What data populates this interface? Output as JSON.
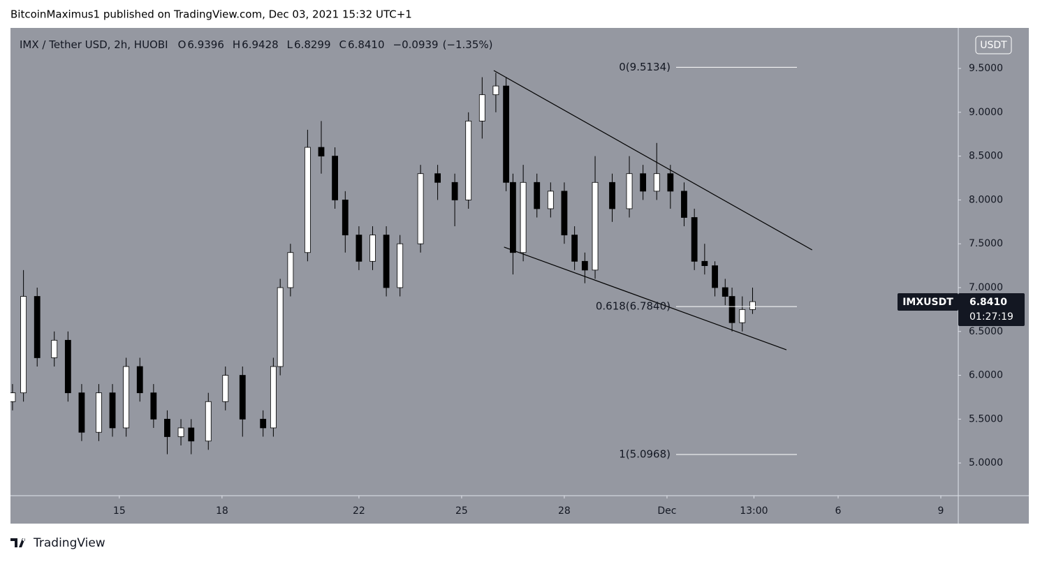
{
  "header": {
    "text": "BitcoinMaximus1 published on TradingView.com, Dec 03, 2021 15:32 UTC+1"
  },
  "footer": {
    "brand": "TradingView"
  },
  "chart_data": {
    "type": "candlestick",
    "title": "IMX / Tether USD, 2h, HUOBI",
    "legend": {
      "o_label": "O",
      "open": 6.9396,
      "h_label": "H",
      "high": 6.9428,
      "l_label": "L",
      "low": 6.8299,
      "c_label": "C",
      "close": 6.841,
      "close_label": "6.8410",
      "change": "−0.0939",
      "change_pct": "(−1.35%)"
    },
    "currency": "USDT",
    "symbol": "IMXUSDT",
    "last_price": {
      "value": 6.841,
      "label": "6.8410"
    },
    "countdown": "01:27:19",
    "up_color": "#ffffff",
    "down_color": "#000000",
    "wick_color": "#000000",
    "xlim": [
      11.82,
      39.51
    ],
    "ylim": [
      4.627,
      9.962
    ],
    "xticks": [
      15,
      18,
      22,
      25,
      28,
      {
        "value": 31,
        "label": "Dec"
      },
      {
        "value": 33.54,
        "label": "13:00"
      },
      {
        "value": 36,
        "label": "6"
      },
      {
        "value": 39,
        "label": "9"
      }
    ],
    "yticks": [
      {
        "value": 5,
        "label": "5.0000"
      },
      {
        "value": 5.5,
        "label": "5.5000"
      },
      {
        "value": 6,
        "label": "6.0000"
      },
      {
        "value": 6.5,
        "label": "6.5000"
      },
      {
        "value": 7,
        "label": "7.0000"
      },
      {
        "value": 7.5,
        "label": "7.5000"
      },
      {
        "value": 8,
        "label": "8.0000"
      },
      {
        "value": 8.5,
        "label": "8.5000"
      },
      {
        "value": 9,
        "label": "9.0000"
      },
      {
        "value": 9.5,
        "label": "9.5000"
      }
    ],
    "x": [
      11.88,
      12.2,
      12.6,
      13.1,
      13.5,
      13.9,
      14.4,
      14.8,
      15.2,
      15.6,
      16.0,
      16.4,
      16.8,
      17.1,
      17.6,
      18.1,
      18.6,
      19.2,
      19.5,
      19.7,
      20.0,
      20.5,
      20.9,
      21.3,
      21.6,
      22.0,
      22.4,
      22.8,
      23.2,
      23.8,
      24.3,
      24.8,
      25.2,
      25.6,
      26.0,
      26.3,
      26.5,
      26.8,
      27.2,
      27.6,
      28.0,
      28.3,
      28.6,
      28.9,
      29.4,
      29.9,
      30.3,
      30.7,
      31.1,
      31.5,
      31.8,
      32.1,
      32.4,
      32.7,
      32.9,
      33.2,
      33.5
    ],
    "open": [
      5.7,
      5.8,
      6.9,
      6.2,
      6.4,
      5.8,
      5.35,
      5.8,
      5.4,
      6.1,
      5.8,
      5.5,
      5.3,
      5.4,
      5.25,
      5.7,
      6.0,
      5.5,
      5.4,
      6.1,
      7.0,
      7.4,
      8.6,
      8.5,
      8.0,
      7.6,
      7.3,
      7.6,
      7.0,
      7.5,
      8.3,
      8.2,
      8.0,
      8.9,
      9.2,
      9.3,
      8.2,
      7.4,
      8.2,
      7.9,
      8.1,
      7.6,
      7.3,
      7.2,
      8.2,
      7.9,
      8.3,
      8.1,
      8.3,
      8.1,
      7.8,
      7.3,
      7.25,
      7.0,
      6.9,
      6.6,
      6.75
    ],
    "high": [
      5.9,
      7.2,
      7.0,
      6.5,
      6.5,
      5.9,
      5.9,
      5.9,
      6.2,
      6.2,
      5.9,
      5.6,
      5.5,
      5.5,
      5.8,
      6.1,
      6.1,
      5.6,
      6.2,
      7.1,
      7.5,
      8.8,
      8.9,
      8.6,
      8.1,
      7.7,
      7.7,
      7.7,
      7.6,
      8.4,
      8.4,
      8.3,
      9.0,
      9.4,
      9.45,
      9.4,
      8.3,
      8.4,
      8.3,
      8.2,
      8.2,
      7.7,
      7.4,
      8.5,
      8.3,
      8.5,
      8.4,
      8.65,
      8.4,
      8.2,
      7.9,
      7.5,
      7.3,
      7.1,
      7.0,
      6.9,
      7.0
    ],
    "low": [
      5.6,
      5.7,
      6.1,
      6.1,
      5.7,
      5.25,
      5.25,
      5.3,
      5.3,
      5.7,
      5.4,
      5.1,
      5.2,
      5.1,
      5.15,
      5.6,
      5.3,
      5.3,
      5.3,
      6.0,
      6.9,
      7.3,
      8.3,
      7.9,
      7.4,
      7.2,
      7.2,
      6.9,
      6.9,
      7.4,
      8.0,
      7.7,
      7.9,
      8.7,
      9.0,
      8.1,
      7.15,
      7.3,
      7.8,
      7.8,
      7.5,
      7.2,
      7.05,
      7.1,
      7.75,
      7.8,
      8.0,
      8.0,
      7.9,
      7.7,
      7.2,
      7.15,
      6.9,
      6.8,
      6.5,
      6.5,
      6.7
    ],
    "close": [
      5.8,
      6.9,
      6.2,
      6.4,
      5.8,
      5.35,
      5.8,
      5.4,
      6.1,
      5.8,
      5.5,
      5.3,
      5.4,
      5.25,
      5.7,
      6.0,
      5.5,
      5.4,
      6.1,
      7.0,
      7.4,
      8.6,
      8.5,
      8.0,
      7.6,
      7.3,
      7.6,
      7.0,
      7.5,
      8.3,
      8.2,
      8.0,
      8.9,
      9.2,
      9.3,
      8.2,
      7.4,
      8.2,
      7.9,
      8.1,
      7.6,
      7.3,
      7.2,
      8.2,
      7.9,
      8.3,
      8.1,
      8.3,
      8.1,
      7.8,
      7.3,
      7.25,
      7.0,
      6.9,
      6.6,
      6.75,
      6.84
    ],
    "fib_levels": [
      {
        "label": "0(9.5134)",
        "value": 9.5134
      },
      {
        "label": "0.618(6.7840)",
        "value": 6.784
      },
      {
        "label": "1(5.0968)",
        "value": 5.0968
      }
    ],
    "trendlines": [
      {
        "x": [
          25.94,
          35.24
        ],
        "y": [
          9.476,
          7.43
        ]
      },
      {
        "x": [
          26.24,
          34.49
        ],
        "y": [
          7.462,
          6.291
        ]
      }
    ]
  }
}
